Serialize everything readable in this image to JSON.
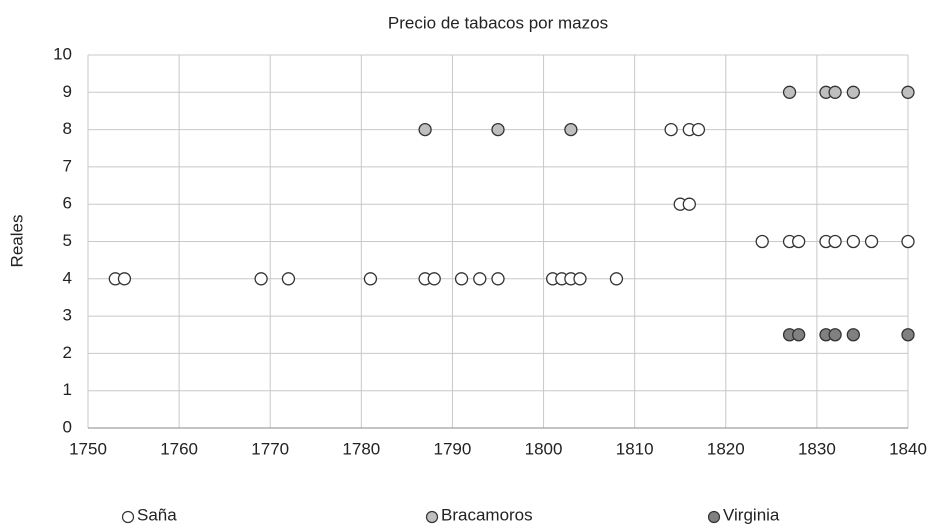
{
  "chart_data": {
    "type": "scatter",
    "title": "Precio de tabacos por mazos",
    "y_label": "Reales",
    "xlim": [
      1750,
      1840
    ],
    "xticks": [
      1750,
      1760,
      1770,
      1780,
      1790,
      1800,
      1810,
      1820,
      1830,
      1840
    ],
    "ylim": [
      0,
      10
    ],
    "yticks": [
      0,
      1,
      2,
      3,
      4,
      5,
      6,
      7,
      8,
      9,
      10
    ],
    "grid": true,
    "legend": "bottom",
    "series": [
      {
        "name": "Saña",
        "color": "#ffffff",
        "x": [
          1753,
          1754,
          1769,
          1772,
          1781,
          1787,
          1788,
          1791,
          1793,
          1795,
          1801,
          1802,
          1803,
          1804,
          1808,
          1814,
          1816,
          1817,
          1815,
          1816,
          1824,
          1827,
          1828,
          1831,
          1832,
          1834,
          1836,
          1840
        ],
        "values": [
          4,
          4,
          4,
          4,
          4,
          4,
          4,
          4,
          4,
          4,
          4,
          4,
          4,
          4,
          4,
          8,
          8,
          8,
          6,
          6,
          5,
          5,
          5,
          5,
          5,
          5,
          5,
          5
        ]
      },
      {
        "name": "Bracamoros",
        "color": "#bfbfbf",
        "x": [
          1787,
          1795,
          1803,
          1827,
          1831,
          1832,
          1834,
          1840
        ],
        "values": [
          8,
          8,
          8,
          9,
          9,
          9,
          9,
          9
        ]
      },
      {
        "name": "Virginia",
        "color": "#808080",
        "x": [
          1827,
          1828,
          1831,
          1832,
          1834,
          1840
        ],
        "values": [
          2.5,
          2.5,
          2.5,
          2.5,
          2.5,
          2.5
        ]
      }
    ]
  }
}
